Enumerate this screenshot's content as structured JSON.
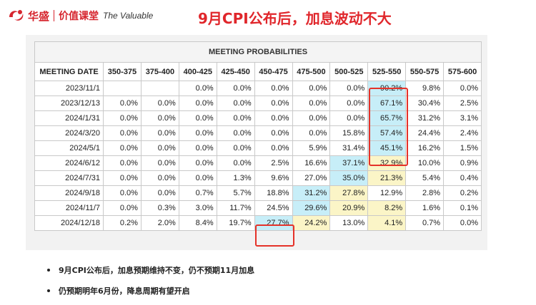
{
  "header": {
    "brand_cn": "华盛",
    "course_cn": "价值课堂",
    "tagline": "The Valuable",
    "title": "9月CPI公布后，加息波动不大"
  },
  "table": {
    "banner": "MEETING PROBABILITIES",
    "columns": [
      "MEETING DATE",
      "350-375",
      "375-400",
      "400-425",
      "425-450",
      "450-475",
      "475-500",
      "500-525",
      "525-550",
      "550-575",
      "575-600"
    ],
    "rows": [
      {
        "date": "2023/11/1",
        "cells": [
          "",
          "",
          "0.0%",
          "0.0%",
          "0.0%",
          "0.0%",
          "0.0%",
          "90.2%",
          "9.8%",
          "0.0%"
        ]
      },
      {
        "date": "2023/12/13",
        "cells": [
          "0.0%",
          "0.0%",
          "0.0%",
          "0.0%",
          "0.0%",
          "0.0%",
          "0.0%",
          "67.1%",
          "30.4%",
          "2.5%"
        ]
      },
      {
        "date": "2024/1/31",
        "cells": [
          "0.0%",
          "0.0%",
          "0.0%",
          "0.0%",
          "0.0%",
          "0.0%",
          "0.0%",
          "65.7%",
          "31.2%",
          "3.1%"
        ]
      },
      {
        "date": "2024/3/20",
        "cells": [
          "0.0%",
          "0.0%",
          "0.0%",
          "0.0%",
          "0.0%",
          "0.0%",
          "15.8%",
          "57.4%",
          "24.4%",
          "2.4%"
        ]
      },
      {
        "date": "2024/5/1",
        "cells": [
          "0.0%",
          "0.0%",
          "0.0%",
          "0.0%",
          "0.0%",
          "5.9%",
          "31.4%",
          "45.1%",
          "16.2%",
          "1.5%"
        ]
      },
      {
        "date": "2024/6/12",
        "cells": [
          "0.0%",
          "0.0%",
          "0.0%",
          "0.0%",
          "2.5%",
          "16.6%",
          "37.1%",
          "32.9%",
          "10.0%",
          "0.9%"
        ]
      },
      {
        "date": "2024/7/31",
        "cells": [
          "0.0%",
          "0.0%",
          "0.0%",
          "1.3%",
          "9.6%",
          "27.0%",
          "35.0%",
          "21.3%",
          "5.4%",
          "0.4%"
        ]
      },
      {
        "date": "2024/9/18",
        "cells": [
          "0.0%",
          "0.0%",
          "0.7%",
          "5.7%",
          "18.8%",
          "31.2%",
          "27.8%",
          "12.9%",
          "2.8%",
          "0.2%"
        ]
      },
      {
        "date": "2024/11/7",
        "cells": [
          "0.0%",
          "0.3%",
          "3.0%",
          "11.7%",
          "24.5%",
          "29.6%",
          "20.9%",
          "8.2%",
          "1.6%",
          "0.1%"
        ]
      },
      {
        "date": "2024/12/18",
        "cells": [
          "0.2%",
          "2.0%",
          "8.4%",
          "19.7%",
          "27.7%",
          "24.2%",
          "13.0%",
          "4.1%",
          "0.7%",
          "0.0%"
        ]
      }
    ],
    "highlight_colors": {
      "blue": "#c7eef8",
      "yellow": "#fbf5c7",
      "box": "#e53229"
    },
    "blue_cells": [
      [
        0,
        7
      ],
      [
        1,
        7
      ],
      [
        2,
        7
      ],
      [
        3,
        7
      ],
      [
        4,
        7
      ],
      [
        5,
        6
      ],
      [
        6,
        6
      ],
      [
        7,
        5
      ],
      [
        8,
        5
      ],
      [
        9,
        4
      ]
    ],
    "yellow_cells": [
      [
        5,
        7
      ],
      [
        6,
        7
      ],
      [
        7,
        6
      ],
      [
        8,
        6
      ],
      [
        9,
        5
      ],
      [
        9,
        7
      ],
      [
        8,
        7
      ]
    ]
  },
  "bullets": [
    "9月CPI公布后，加息预期维持不变，仍不预期11月加息",
    "仍预期明年6月份，降息周期有望开启"
  ]
}
